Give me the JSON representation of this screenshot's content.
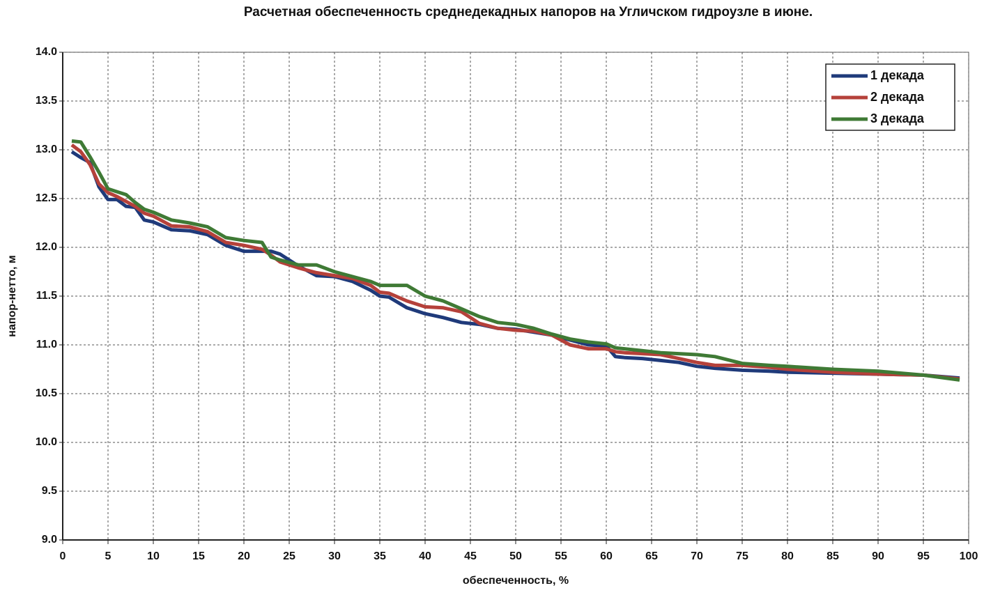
{
  "chart_data": {
    "type": "line",
    "title": "Расчетная обеспеченность среднедекадных напоров на Угличском гидроузле в июне.",
    "xlabel": "обеспеченность,  %",
    "ylabel": "напор-нетто, м",
    "x": [
      1,
      2,
      3,
      4,
      5,
      6,
      7,
      8,
      9,
      10,
      12,
      14,
      16,
      18,
      20,
      22,
      23,
      24,
      26,
      28,
      30,
      32,
      34,
      35,
      36,
      38,
      40,
      42,
      44,
      46,
      48,
      50,
      52,
      54,
      56,
      58,
      60,
      61,
      62,
      64,
      66,
      68,
      70,
      72,
      75,
      78,
      80,
      85,
      90,
      95,
      99
    ],
    "series": [
      {
        "name": "1 декада",
        "color": "#1f3a7a",
        "values": [
          12.98,
          12.92,
          12.87,
          12.62,
          12.49,
          12.49,
          12.42,
          12.41,
          12.28,
          12.26,
          12.18,
          12.17,
          12.13,
          12.02,
          11.96,
          11.96,
          11.96,
          11.93,
          11.81,
          11.71,
          11.7,
          11.65,
          11.56,
          11.5,
          11.49,
          11.38,
          11.32,
          11.28,
          11.23,
          11.21,
          11.17,
          11.16,
          11.13,
          11.1,
          11.05,
          11.0,
          10.99,
          10.88,
          10.87,
          10.86,
          10.84,
          10.82,
          10.78,
          10.76,
          10.74,
          10.73,
          10.72,
          10.71,
          10.7,
          10.69,
          10.66
        ]
      },
      {
        "name": "2 декада",
        "color": "#b5413a",
        "values": [
          13.05,
          12.98,
          12.85,
          12.65,
          12.56,
          12.52,
          12.47,
          12.42,
          12.35,
          12.32,
          12.22,
          12.21,
          12.16,
          12.05,
          12.02,
          11.98,
          11.92,
          11.85,
          11.79,
          11.74,
          11.71,
          11.68,
          11.61,
          11.54,
          11.53,
          11.45,
          11.39,
          11.38,
          11.34,
          11.22,
          11.17,
          11.15,
          11.14,
          11.1,
          11.0,
          10.96,
          10.96,
          10.93,
          10.92,
          10.91,
          10.9,
          10.86,
          10.82,
          10.79,
          10.79,
          10.77,
          10.75,
          10.72,
          10.7,
          10.69,
          10.65
        ]
      },
      {
        "name": "3 декада",
        "color": "#3f7a35",
        "values": [
          13.09,
          13.08,
          12.93,
          12.77,
          12.6,
          12.57,
          12.54,
          12.46,
          12.39,
          12.36,
          12.28,
          12.25,
          12.21,
          12.1,
          12.07,
          12.05,
          11.9,
          11.87,
          11.82,
          11.82,
          11.75,
          11.7,
          11.65,
          11.61,
          11.61,
          11.61,
          11.5,
          11.45,
          11.37,
          11.29,
          11.23,
          11.21,
          11.17,
          11.11,
          11.06,
          11.03,
          11.01,
          10.97,
          10.96,
          10.94,
          10.92,
          10.91,
          10.9,
          10.88,
          10.81,
          10.79,
          10.78,
          10.75,
          10.73,
          10.69,
          10.64
        ]
      }
    ],
    "xlim": [
      0,
      100
    ],
    "xticks": [
      0,
      5,
      10,
      15,
      20,
      25,
      30,
      35,
      40,
      45,
      50,
      55,
      60,
      65,
      70,
      75,
      80,
      85,
      90,
      95,
      100
    ],
    "ylim": [
      9,
      14
    ],
    "yticks": [
      {
        "value": 9,
        "label": "9.0"
      },
      9.5,
      {
        "value": 10,
        "label": "10.0"
      },
      10.5,
      {
        "value": 11,
        "label": "11.0"
      },
      11.5,
      {
        "value": 12,
        "label": "12.0"
      },
      12.5,
      {
        "value": 13,
        "label": "13.0"
      },
      13.5,
      {
        "value": 14,
        "label": "14.0"
      }
    ],
    "grid": true,
    "legend": "upper right"
  }
}
